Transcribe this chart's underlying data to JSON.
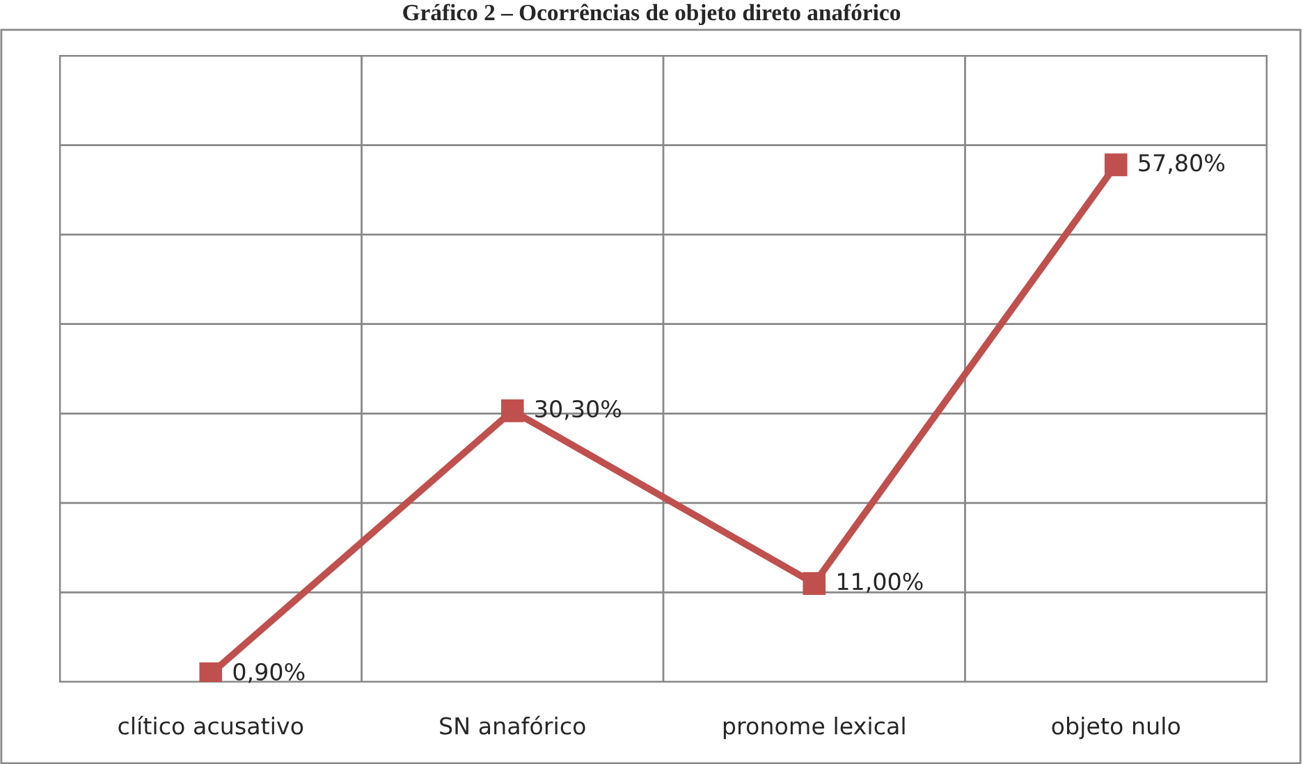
{
  "chart_data": {
    "type": "line",
    "title": "Gráfico 2 – Ocorrências de objeto direto anafórico",
    "categories": [
      "clítico acusativo",
      "SN anafórico",
      "pronome lexical",
      "objeto nulo"
    ],
    "series": [
      {
        "color": "#c0504d",
        "values": [
          0.9,
          30.3,
          11.0,
          57.8
        ],
        "value_labels": [
          "0,90%",
          "30,30%",
          "11,00%",
          "57,80%"
        ]
      }
    ],
    "ylim": [
      0,
      70
    ],
    "yticks": [
      {
        "value": 0,
        "label": null
      },
      {
        "value": 10,
        "label": null
      },
      {
        "value": 20,
        "label": null
      },
      {
        "value": 30,
        "label": null
      },
      {
        "value": 40,
        "label": null
      },
      {
        "value": 50,
        "label": null
      },
      {
        "value": 60,
        "label": null
      },
      {
        "value": 70,
        "label": null
      }
    ],
    "tick_labels": "x",
    "grid": true,
    "marker": "square",
    "line_style": "solid"
  }
}
